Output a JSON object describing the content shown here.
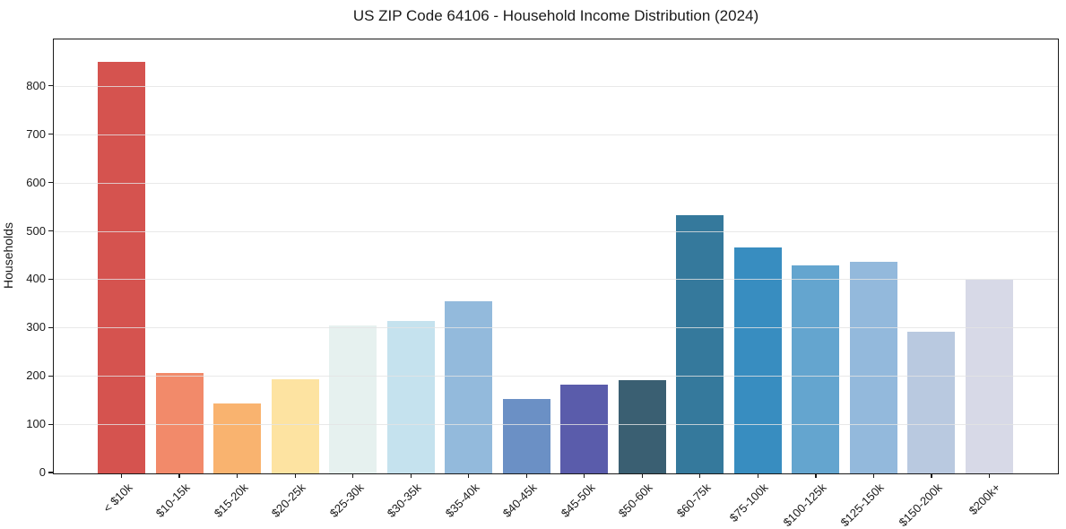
{
  "chart_data": {
    "type": "bar",
    "title": "US ZIP Code 64106 - Household Income Distribution (2024)",
    "xlabel": "",
    "ylabel": "Households",
    "categories": [
      "< $10k",
      "$10-15k",
      "$15-20k",
      "$20-25k",
      "$25-30k",
      "$30-35k",
      "$35-40k",
      "$40-45k",
      "$45-50k",
      "$50-60k",
      "$60-75k",
      "$75-100k",
      "$100-125k",
      "$125-150k",
      "$150-200k",
      "$200k+"
    ],
    "values": [
      852,
      208,
      145,
      195,
      307,
      316,
      357,
      154,
      184,
      193,
      535,
      468,
      430,
      438,
      294,
      400
    ],
    "bar_colors": [
      "#d5534f",
      "#f28a6a",
      "#f9b36f",
      "#fde3a1",
      "#e6f1ef",
      "#c5e2ee",
      "#93badc",
      "#6b90c5",
      "#5a5cab",
      "#3a5f72",
      "#35799c",
      "#388dc0",
      "#64a5cf",
      "#93b9dc",
      "#b9c9e0",
      "#d7d9e7"
    ],
    "ylim": [
      0,
      898
    ],
    "yticks": [
      0,
      100,
      200,
      300,
      400,
      500,
      600,
      700,
      800
    ],
    "grid": "horizontal",
    "legend": "none",
    "background_color": "#ffffff",
    "grid_color": "#e7e7e7",
    "spine_color": "#1a1a1a",
    "text_color": "#1a1a1a"
  }
}
